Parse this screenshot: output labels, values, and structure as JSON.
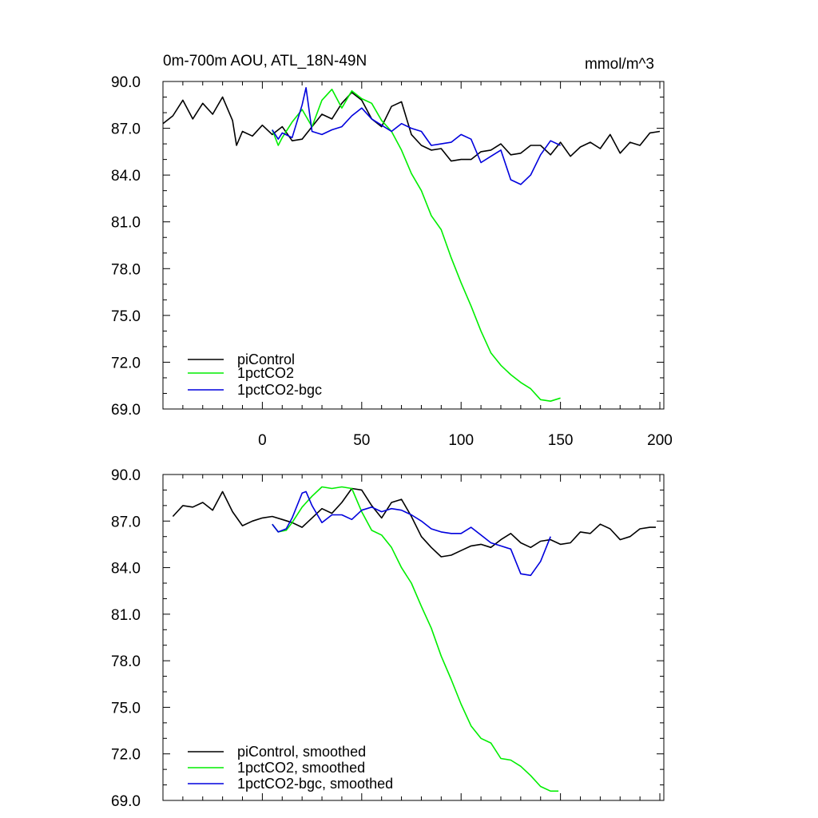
{
  "header": {
    "title": "0m-700m AOU, ATL_18N-49N",
    "units": "mmol/m^3"
  },
  "colors": {
    "piControl": "#000000",
    "1pctCO2": "#00ee00",
    "1pctCO2-bgc": "#0000dd"
  },
  "chart_data": [
    {
      "type": "line",
      "title": "0m-700m AOU, ATL_18N-49N",
      "units_label": "mmol/m^3",
      "xlim": [
        -50,
        202
      ],
      "ylim": [
        69.0,
        90.0
      ],
      "x_ticks": [
        0,
        50,
        100,
        150,
        200
      ],
      "x_tick_labels": [
        "0",
        "50",
        "100",
        "150",
        "200"
      ],
      "y_ticks": [
        69.0,
        72.0,
        75.0,
        78.0,
        81.0,
        84.0,
        87.0,
        90.0
      ],
      "y_tick_labels": [
        "69.0",
        "72.0",
        "75.0",
        "78.0",
        "81.0",
        "84.0",
        "87.0",
        "90.0"
      ],
      "legend_position": "bottom-left",
      "series": [
        {
          "name": "piControl",
          "x": [
            -50,
            -45,
            -40,
            -35,
            -30,
            -25,
            -20,
            -15,
            -13,
            -10,
            -5,
            0,
            5,
            10,
            15,
            20,
            25,
            30,
            35,
            40,
            45,
            50,
            55,
            60,
            65,
            70,
            75,
            80,
            85,
            90,
            95,
            100,
            105,
            110,
            115,
            120,
            125,
            130,
            135,
            140,
            145,
            150,
            155,
            160,
            165,
            170,
            175,
            180,
            185,
            190,
            195,
            200
          ],
          "y": [
            87.3,
            87.8,
            88.8,
            87.6,
            88.6,
            87.9,
            89.0,
            87.5,
            85.9,
            86.8,
            86.5,
            87.2,
            86.6,
            87.1,
            86.2,
            86.3,
            87.1,
            87.9,
            87.6,
            88.6,
            89.3,
            88.8,
            87.6,
            87.1,
            88.4,
            88.7,
            86.6,
            85.9,
            85.6,
            85.7,
            84.9,
            85.0,
            85.0,
            85.5,
            85.6,
            86.0,
            85.3,
            85.4,
            85.9,
            85.9,
            85.3,
            86.1,
            85.2,
            85.8,
            86.1,
            85.7,
            86.6,
            85.4,
            86.1,
            85.9,
            86.7,
            86.8
          ]
        },
        {
          "name": "1pctCO2",
          "x": [
            5,
            8,
            10,
            15,
            20,
            25,
            30,
            35,
            40,
            45,
            50,
            55,
            60,
            65,
            70,
            75,
            80,
            85,
            90,
            95,
            100,
            105,
            110,
            115,
            120,
            125,
            130,
            135,
            140,
            145,
            150
          ],
          "y": [
            86.9,
            85.9,
            86.4,
            87.4,
            88.2,
            87.1,
            88.8,
            89.5,
            88.3,
            89.4,
            88.9,
            88.6,
            87.5,
            86.8,
            85.6,
            84.1,
            83.0,
            81.4,
            80.5,
            78.7,
            77.1,
            75.6,
            74.0,
            72.6,
            71.8,
            71.2,
            70.7,
            70.3,
            69.6,
            69.5,
            69.7
          ]
        },
        {
          "name": "1pctCO2-bgc",
          "x": [
            5,
            8,
            10,
            15,
            20,
            22,
            25,
            30,
            35,
            40,
            45,
            50,
            55,
            60,
            65,
            70,
            75,
            80,
            85,
            90,
            95,
            100,
            105,
            110,
            115,
            120,
            125,
            130,
            135,
            140,
            145,
            150
          ],
          "y": [
            86.9,
            86.3,
            86.7,
            86.4,
            88.5,
            89.6,
            86.8,
            86.6,
            86.9,
            87.1,
            87.8,
            88.3,
            87.6,
            87.2,
            86.8,
            87.3,
            87.0,
            86.8,
            85.9,
            86.0,
            86.1,
            86.6,
            86.3,
            84.8,
            85.2,
            85.6,
            83.7,
            83.4,
            84.0,
            85.3,
            86.2,
            85.9
          ]
        }
      ]
    },
    {
      "type": "line",
      "xlim": [
        -50,
        202
      ],
      "ylim": [
        69.0,
        90.0
      ],
      "x_ticks": [
        0,
        50,
        100,
        150,
        200
      ],
      "y_ticks": [
        69.0,
        72.0,
        75.0,
        78.0,
        81.0,
        84.0,
        87.0,
        90.0
      ],
      "y_tick_labels": [
        "69.0",
        "72.0",
        "75.0",
        "78.0",
        "81.0",
        "84.0",
        "87.0",
        "90.0"
      ],
      "legend_position": "bottom-left",
      "series": [
        {
          "name": "piControl, smoothed",
          "x": [
            -45,
            -40,
            -35,
            -30,
            -25,
            -20,
            -15,
            -10,
            -5,
            0,
            5,
            10,
            15,
            20,
            25,
            30,
            35,
            40,
            45,
            50,
            55,
            60,
            65,
            70,
            75,
            80,
            85,
            90,
            95,
            100,
            105,
            110,
            115,
            120,
            125,
            130,
            135,
            140,
            145,
            150,
            155,
            160,
            165,
            170,
            175,
            180,
            185,
            190,
            195,
            198
          ],
          "y": [
            87.3,
            88.0,
            87.9,
            88.2,
            87.7,
            88.9,
            87.6,
            86.7,
            87.0,
            87.2,
            87.3,
            87.1,
            86.9,
            86.6,
            87.2,
            87.8,
            87.5,
            88.2,
            89.1,
            89.0,
            88.0,
            87.2,
            88.2,
            88.4,
            87.3,
            86.0,
            85.3,
            84.7,
            84.8,
            85.1,
            85.4,
            85.5,
            85.3,
            85.8,
            86.2,
            85.6,
            85.3,
            85.7,
            85.8,
            85.5,
            85.6,
            86.3,
            86.2,
            86.8,
            86.5,
            85.8,
            86.0,
            86.5,
            86.6,
            86.6
          ]
        },
        {
          "name": "1pctCO2, smoothed",
          "x": [
            5,
            8,
            12,
            15,
            20,
            25,
            30,
            35,
            40,
            45,
            50,
            55,
            60,
            65,
            70,
            75,
            80,
            85,
            90,
            95,
            100,
            105,
            110,
            115,
            120,
            125,
            130,
            135,
            140,
            145,
            149
          ],
          "y": [
            86.8,
            86.3,
            86.4,
            86.9,
            87.9,
            88.6,
            89.2,
            89.1,
            89.2,
            89.1,
            87.6,
            86.4,
            86.1,
            85.3,
            84.0,
            83.0,
            81.5,
            80.1,
            78.3,
            76.8,
            75.2,
            73.8,
            73.0,
            72.7,
            71.7,
            71.6,
            71.2,
            70.6,
            69.9,
            69.6,
            69.6
          ]
        },
        {
          "name": "1pctCO2-bgc, smoothed",
          "x": [
            5,
            8,
            12,
            15,
            20,
            22,
            25,
            30,
            35,
            40,
            45,
            50,
            55,
            60,
            65,
            70,
            75,
            80,
            85,
            90,
            95,
            100,
            105,
            110,
            115,
            120,
            125,
            130,
            135,
            140,
            145
          ],
          "y": [
            86.8,
            86.3,
            86.5,
            87.2,
            88.8,
            88.9,
            88.0,
            86.9,
            87.4,
            87.4,
            87.1,
            87.7,
            87.9,
            87.6,
            87.8,
            87.7,
            87.4,
            87.0,
            86.5,
            86.3,
            86.2,
            86.2,
            86.6,
            86.1,
            85.6,
            85.4,
            85.2,
            83.6,
            83.5,
            84.4,
            86.0
          ]
        }
      ]
    }
  ]
}
